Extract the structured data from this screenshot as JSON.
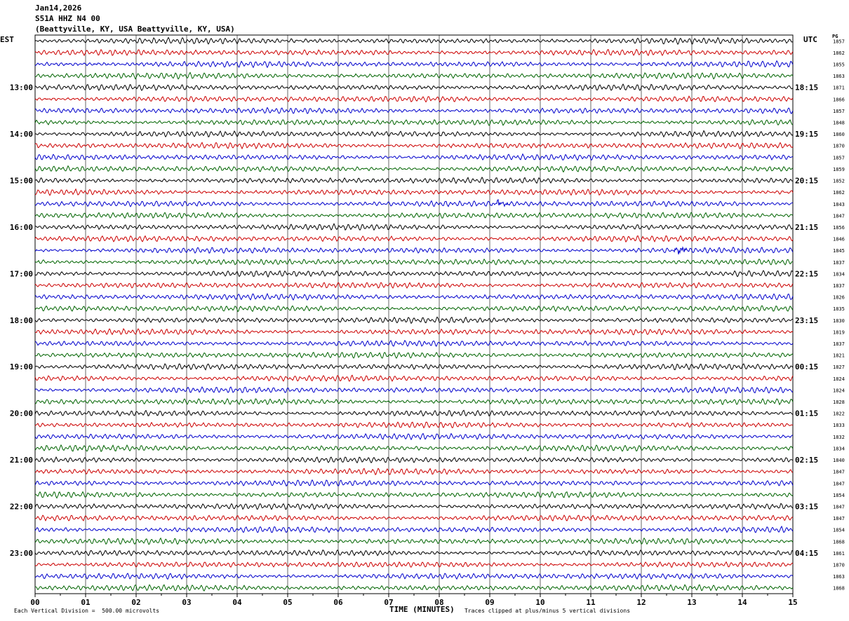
{
  "header": {
    "date": "Jan14,2026",
    "station": "S51A HHZ N4 00",
    "location": "(Beattyville, KY, USA Beattyville, KY, USA)"
  },
  "left_zone_label": "EST",
  "right_zone_label": "UTC",
  "right_column_header": "PG",
  "footer": {
    "scale_text": "Each Vertical Division =  500.00 microvolts",
    "xaxis_title": "TIME (MINUTES)",
    "clip_text": "Traces clipped at plus/minus 5 vertical divisions"
  },
  "colors": {
    "trace_cycle": [
      "#000000",
      "#cc0000",
      "#0000cc",
      "#006400"
    ],
    "grid": "#000000"
  },
  "chart_data": {
    "type": "line",
    "description_kind": "helicorder",
    "x_ticks": [
      "00",
      "01",
      "02",
      "03",
      "04",
      "05",
      "06",
      "07",
      "08",
      "09",
      "10",
      "11",
      "12",
      "13",
      "14",
      "15"
    ],
    "xlim": [
      0,
      15
    ],
    "rows_per_hour": 4,
    "left_hour_labels": [
      "13:00",
      "14:00",
      "15:00",
      "16:00",
      "17:00",
      "18:00",
      "19:00",
      "20:00",
      "21:00",
      "22:00",
      "23:00"
    ],
    "right_hour_labels": [
      "18:15",
      "19:15",
      "20:15",
      "21:15",
      "22:15",
      "23:15",
      "00:15",
      "01:15",
      "02:15",
      "03:15",
      "04:15"
    ],
    "row_values": [
      "1857",
      "1862",
      "1855",
      "1863",
      "1871",
      "1866",
      "1857",
      "1848",
      "1860",
      "1870",
      "1857",
      "1859",
      "1852",
      "1862",
      "1843",
      "1847",
      "1856",
      "1846",
      "1845",
      "1837",
      "1834",
      "1837",
      "1826",
      "1835",
      "1830",
      "1819",
      "1837",
      "1821",
      "1827",
      "1824",
      "1824",
      "1828",
      "1822",
      "1833",
      "1832",
      "1834",
      "1840",
      "1847",
      "1847",
      "1854",
      "1847",
      "1847",
      "1854",
      "1868",
      "1861",
      "1870",
      "1863",
      "1868"
    ],
    "events": [
      {
        "row": 14,
        "minute": 9.2,
        "amplitude": "small burst"
      },
      {
        "row": 18,
        "minute": 12.8,
        "amplitude": "small burst"
      }
    ]
  }
}
